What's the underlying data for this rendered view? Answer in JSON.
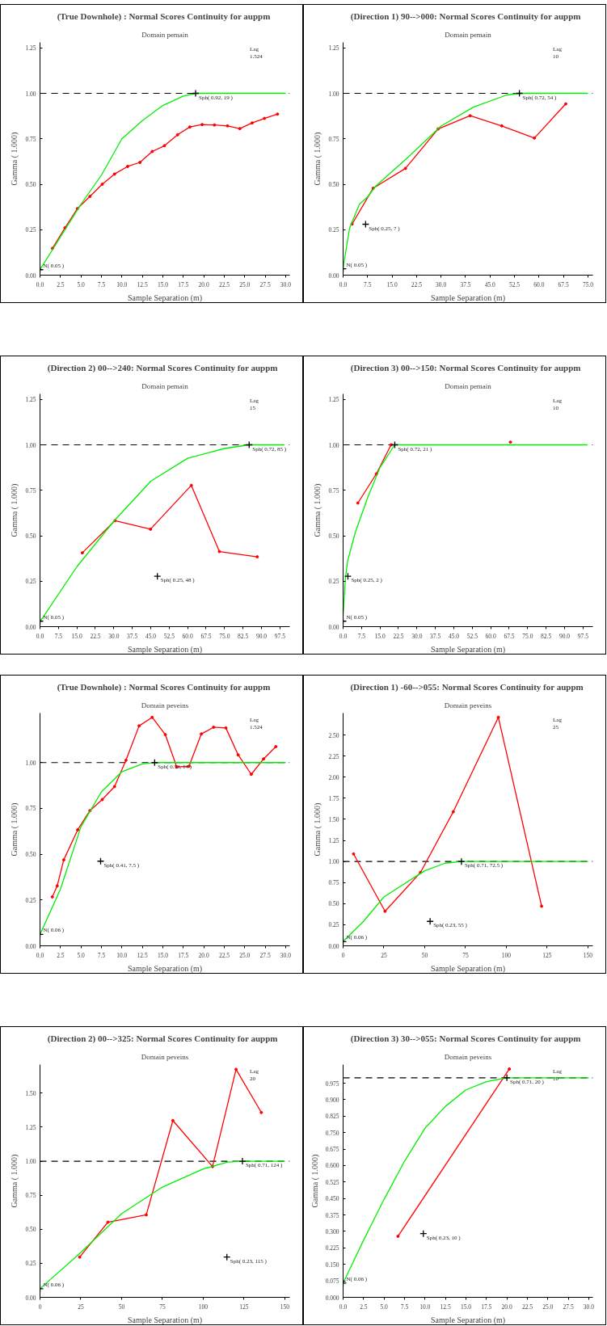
{
  "chart_data": [
    {
      "type": "line",
      "title": "(True Downhole) :  Normal Scores Continuity for auppm",
      "subtitle": "Domain pemain",
      "xlabel": "Sample Separation (m)",
      "ylabel": "Gamma ( 1.000)",
      "xlim": [
        0,
        30.5
      ],
      "ylim": [
        0,
        1.28
      ],
      "xticks": [
        {
          "value": 0,
          "label": "0.0"
        },
        {
          "value": 2.5,
          "label": "2.5"
        },
        {
          "value": 5,
          "label": "5.0"
        },
        {
          "value": 7.5,
          "label": "7.5"
        },
        {
          "value": 10,
          "label": "10.0"
        },
        {
          "value": 12.5,
          "label": "12.5"
        },
        {
          "value": 15,
          "label": "15.0"
        },
        {
          "value": 17.5,
          "label": "17.5"
        },
        {
          "value": 20,
          "label": "20.0"
        },
        {
          "value": 22.5,
          "label": "22.5"
        },
        {
          "value": 25,
          "label": "25.0"
        },
        {
          "value": 27.5,
          "label": "27.5"
        },
        {
          "value": 30,
          "label": "30.0"
        }
      ],
      "yticks": [
        {
          "value": 0,
          "label": "0.00"
        },
        {
          "value": 0.25,
          "label": "0.25"
        },
        {
          "value": 0.5,
          "label": "0.50"
        },
        {
          "value": 0.75,
          "label": "0.75"
        },
        {
          "value": 1,
          "label": "1.00"
        },
        {
          "value": 1.25,
          "label": "1.25"
        }
      ],
      "series": [
        {
          "color": "#ff0000",
          "marker": "circle",
          "x": [
            1.52,
            3.05,
            4.57,
            6.1,
            7.6,
            9.1,
            10.7,
            12.2,
            13.7,
            15.2,
            16.8,
            18.3,
            19.8,
            21.3,
            22.9,
            24.4,
            25.9,
            27.4,
            29.0
          ],
          "values": [
            0.147,
            0.26,
            0.366,
            0.433,
            0.5,
            0.556,
            0.598,
            0.62,
            0.68,
            0.712,
            0.772,
            0.815,
            0.828,
            0.826,
            0.821,
            0.806,
            0.837,
            0.862,
            0.886
          ]
        },
        {
          "color": "#00ee00",
          "marker": "none",
          "x": [
            0,
            2.5,
            5,
            7.5,
            10,
            12.5,
            15,
            17.5,
            19,
            30
          ],
          "values": [
            0.03,
            0.21,
            0.39,
            0.55,
            0.75,
            0.85,
            0.933,
            0.985,
            1.0,
            1.0
          ]
        },
        {
          "type": "scatter",
          "color": "#000000",
          "marker": "cross",
          "x": [
            0,
            19
          ],
          "values": [
            0.03,
            1.0
          ]
        }
      ],
      "ref_lines": [
        {
          "axis": "y",
          "value": 1.0,
          "color": "#000000",
          "line_style": "dashed"
        }
      ],
      "annotations": [
        {
          "text": "N( 0.05 )",
          "x": 0,
          "y": 0.03
        },
        {
          "text": "Sph( 0.92, 19 )",
          "x": 19,
          "y": 1.0
        },
        "Lag\n1.524"
      ]
    },
    {
      "type": "line",
      "title": "(Direction 1)  90-->000:  Normal Scores Continuity for auppm",
      "subtitle": "Domain pemain",
      "xlabel": "Sample Separation (m)",
      "ylabel": "Gamma ( 1.000)",
      "xlim": [
        0,
        76.5
      ],
      "ylim": [
        0,
        1.28
      ],
      "xticks": [
        {
          "value": 0,
          "label": "0.0"
        },
        {
          "value": 7.5,
          "label": "7.5"
        },
        {
          "value": 15,
          "label": "15.0"
        },
        {
          "value": 22.5,
          "label": "22.5"
        },
        {
          "value": 30,
          "label": "30.0"
        },
        {
          "value": 37.5,
          "label": "37.5"
        },
        {
          "value": 45,
          "label": "45.0"
        },
        {
          "value": 52.5,
          "label": "52.5"
        },
        {
          "value": 60,
          "label": "60.0"
        },
        {
          "value": 67.5,
          "label": "67.5"
        },
        {
          "value": 75,
          "label": "75.0"
        }
      ],
      "yticks": [
        {
          "value": 0,
          "label": "0.00"
        },
        {
          "value": 0.25,
          "label": "0.25"
        },
        {
          "value": 0.5,
          "label": "0.50"
        },
        {
          "value": 0.75,
          "label": "0.75"
        },
        {
          "value": 1,
          "label": "1.00"
        },
        {
          "value": 1.25,
          "label": "1.25"
        }
      ],
      "series": [
        {
          "color": "#ff0000",
          "marker": "circle",
          "x": [
            2.75,
            9.2,
            19.1,
            29.1,
            38.9,
            48.6,
            58.6,
            68.2
          ],
          "values": [
            0.281,
            0.478,
            0.587,
            0.804,
            0.877,
            0.821,
            0.754,
            0.942
          ]
        },
        {
          "color": "#00ee00",
          "marker": "none",
          "x": [
            0,
            2,
            5,
            7.5,
            10,
            20,
            30,
            40,
            50,
            54,
            75
          ],
          "values": [
            0.04,
            0.26,
            0.39,
            0.43,
            0.49,
            0.65,
            0.82,
            0.925,
            0.99,
            1.0,
            1.0
          ]
        },
        {
          "type": "scatter",
          "color": "#000000",
          "marker": "cross",
          "x": [
            0,
            6.9,
            54
          ],
          "values": [
            0.035,
            0.28,
            1.0
          ]
        }
      ],
      "ref_lines": [
        {
          "axis": "y",
          "value": 1.0,
          "color": "#000000",
          "line_style": "dashed"
        }
      ],
      "annotations": [
        {
          "text": "N( 0.05 )",
          "x": 0,
          "y": 0.035
        },
        {
          "text": "Sph( 0.25, 7 )",
          "x": 6.9,
          "y": 0.28
        },
        {
          "text": "Sph( 0.72, 54 )",
          "x": 54,
          "y": 1.0
        },
        "Lag\n10"
      ]
    },
    {
      "type": "line",
      "title": "(Direction 2)  00-->240:  Normal Scores Continuity for auppm",
      "subtitle": "Domain pemain",
      "xlabel": "Sample Separation (m)",
      "ylabel": "Gamma ( 1.000)",
      "xlim": [
        0,
        101.5
      ],
      "ylim": [
        0,
        1.28
      ],
      "xticks": [
        {
          "value": 0,
          "label": "0.0"
        },
        {
          "value": 7.5,
          "label": "7.5"
        },
        {
          "value": 15,
          "label": "15.0"
        },
        {
          "value": 22.5,
          "label": "22.5"
        },
        {
          "value": 30,
          "label": "30.0"
        },
        {
          "value": 37.5,
          "label": "37.5"
        },
        {
          "value": 45,
          "label": "45.0"
        },
        {
          "value": 52.5,
          "label": "52.5"
        },
        {
          "value": 60,
          "label": "60.0"
        },
        {
          "value": 67.5,
          "label": "67.5"
        },
        {
          "value": 75,
          "label": "75.0"
        },
        {
          "value": 82.5,
          "label": "82.5"
        },
        {
          "value": 90,
          "label": "90.0"
        },
        {
          "value": 97.5,
          "label": "97.5"
        }
      ],
      "yticks": [
        {
          "value": 0,
          "label": "0.00"
        },
        {
          "value": 0.25,
          "label": "0.25"
        },
        {
          "value": 0.5,
          "label": "0.50"
        },
        {
          "value": 0.75,
          "label": "0.75"
        },
        {
          "value": 1,
          "label": "1.00"
        },
        {
          "value": 1.25,
          "label": "1.25"
        }
      ],
      "series": [
        {
          "color": "#ff0000",
          "marker": "circle",
          "x": [
            17.2,
            30.5,
            44.9,
            61.5,
            72.9,
            88.3
          ],
          "values": [
            0.406,
            0.583,
            0.536,
            0.777,
            0.413,
            0.384
          ]
        },
        {
          "color": "#00ee00",
          "marker": "none",
          "x": [
            0,
            15,
            30,
            45,
            60,
            75,
            85,
            99
          ],
          "values": [
            0.027,
            0.33,
            0.58,
            0.8,
            0.926,
            0.98,
            1.0,
            1.0
          ]
        },
        {
          "type": "scatter",
          "color": "#000000",
          "marker": "cross",
          "x": [
            0,
            47.7,
            85
          ],
          "values": [
            0.03,
            0.277,
            1.0
          ]
        }
      ],
      "ref_lines": [
        {
          "axis": "y",
          "value": 1.0,
          "color": "#000000",
          "line_style": "dashed"
        }
      ],
      "annotations": [
        {
          "text": "N( 0.05 )",
          "x": 0,
          "y": 0.03
        },
        {
          "text": "Sph( 0.25, 48 )",
          "x": 47.7,
          "y": 0.277
        },
        {
          "text": "Sph( 0.72, 85 )",
          "x": 85,
          "y": 1.0
        },
        "Lag\n15"
      ]
    },
    {
      "type": "line",
      "title": "(Direction 3)  00-->150:  Normal Scores Continuity for auppm",
      "subtitle": "Domain pemain",
      "xlabel": "Sample Separation (m)",
      "ylabel": "Gamma ( 1.000)",
      "xlim": [
        0,
        101.5
      ],
      "ylim": [
        0,
        1.28
      ],
      "xticks": [
        {
          "value": 0,
          "label": "0.0"
        },
        {
          "value": 7.5,
          "label": "7.5"
        },
        {
          "value": 15,
          "label": "15.0"
        },
        {
          "value": 22.5,
          "label": "22.5"
        },
        {
          "value": 30,
          "label": "30.0"
        },
        {
          "value": 37.5,
          "label": "37.5"
        },
        {
          "value": 45,
          "label": "45.0"
        },
        {
          "value": 52.5,
          "label": "52.5"
        },
        {
          "value": 60,
          "label": "60.0"
        },
        {
          "value": 67.5,
          "label": "67.5"
        },
        {
          "value": 75,
          "label": "75.0"
        },
        {
          "value": 82.5,
          "label": "82.5"
        },
        {
          "value": 90,
          "label": "90.0"
        },
        {
          "value": 97.5,
          "label": "97.5"
        }
      ],
      "yticks": [
        {
          "value": 0,
          "label": "0.00"
        },
        {
          "value": 0.25,
          "label": "0.25"
        },
        {
          "value": 0.5,
          "label": "0.50"
        },
        {
          "value": 0.75,
          "label": "0.75"
        },
        {
          "value": 1,
          "label": "1.00"
        },
        {
          "value": 1.25,
          "label": "1.25"
        }
      ],
      "series": [
        {
          "color": "#ff0000",
          "marker": "circle",
          "x": [
            6.0,
            13.5,
            19.5,
            44,
            68
          ],
          "values": [
            0.68,
            0.84,
            1.0,
            null,
            1.015
          ]
        },
        {
          "color": "#00ee00",
          "marker": "none",
          "x": [
            0,
            0.9,
            1.8,
            5,
            10,
            15,
            20,
            21,
            99.3
          ],
          "values": [
            0.056,
            0.26,
            0.36,
            0.52,
            0.71,
            0.875,
            0.98,
            1.0,
            1.0
          ]
        },
        {
          "type": "scatter",
          "color": "#000000",
          "marker": "cross",
          "x": [
            0,
            1.95,
            21
          ],
          "values": [
            0.03,
            0.277,
            1.0
          ]
        }
      ],
      "ref_lines": [
        {
          "axis": "y",
          "value": 1.0,
          "color": "#000000",
          "line_style": "dashed"
        }
      ],
      "annotations": [
        {
          "text": "N( 0.05 )",
          "x": 0,
          "y": 0.03
        },
        {
          "text": "Sph( 0.25, 2 )",
          "x": 1.95,
          "y": 0.277
        },
        {
          "text": "Sph( 0.72, 21 )",
          "x": 21,
          "y": 1.0
        },
        "Lag\n10"
      ]
    },
    {
      "type": "line",
      "title": "(True Downhole) :  Normal Scores Continuity for auppm",
      "subtitle": "Domain peveins",
      "xlabel": "Sample Separation (m)",
      "ylabel": "Gamma ( 1.000)",
      "xlim": [
        0,
        30.5
      ],
      "ylim": [
        0,
        1.27
      ],
      "xticks": [
        {
          "value": 0,
          "label": "0.0"
        },
        {
          "value": 2.5,
          "label": "2.5"
        },
        {
          "value": 5,
          "label": "5.0"
        },
        {
          "value": 7.5,
          "label": "7.5"
        },
        {
          "value": 10,
          "label": "10.0"
        },
        {
          "value": 12.5,
          "label": "12.5"
        },
        {
          "value": 15,
          "label": "15.0"
        },
        {
          "value": 17.5,
          "label": "17.5"
        },
        {
          "value": 20,
          "label": "20.0"
        },
        {
          "value": 22.5,
          "label": "22.5"
        },
        {
          "value": 25,
          "label": "25.0"
        },
        {
          "value": 27.5,
          "label": "27.5"
        },
        {
          "value": 30,
          "label": "30.0"
        }
      ],
      "yticks": [
        {
          "value": 0,
          "label": "0.00"
        },
        {
          "value": 0.25,
          "label": "0.25"
        },
        {
          "value": 0.5,
          "label": "0.50"
        },
        {
          "value": 0.75,
          "label": "0.75"
        },
        {
          "value": 1,
          "label": "1.00"
        }
      ],
      "series": [
        {
          "color": "#ff0000",
          "marker": "circle",
          "x": [
            1.5,
            2.1,
            2.9,
            4.6,
            6.1,
            7.6,
            9.1,
            10.5,
            12.1,
            13.7,
            15.3,
            16.7,
            18.2,
            19.7,
            21.2,
            22.7,
            24.2,
            25.8,
            27.3,
            28.8
          ],
          "values": [
            0.267,
            0.327,
            0.469,
            0.633,
            0.738,
            0.798,
            0.869,
            1.013,
            1.2,
            1.247,
            1.153,
            0.976,
            0.98,
            1.156,
            1.193,
            1.189,
            1.042,
            0.936,
            1.02,
            1.087
          ]
        },
        {
          "color": "#00ee00",
          "marker": "none",
          "x": [
            0,
            2.5,
            5,
            7.5,
            10,
            12.5,
            14,
            30
          ],
          "values": [
            0.062,
            0.31,
            0.65,
            0.84,
            0.95,
            0.993,
            1.0,
            1.0
          ]
        },
        {
          "type": "scatter",
          "color": "#000000",
          "marker": "cross",
          "x": [
            0,
            7.4,
            14
          ],
          "values": [
            0.062,
            0.462,
            1.0
          ]
        }
      ],
      "ref_lines": [
        {
          "axis": "y",
          "value": 1.0,
          "color": "#000000",
          "line_style": "dashed"
        }
      ],
      "annotations": [
        {
          "text": "N( 0.06 )",
          "x": 0,
          "y": 0.062
        },
        {
          "text": "Sph( 0.41, 7.5 )",
          "x": 7.4,
          "y": 0.462
        },
        {
          "text": "Sph( 0.53, 14 )",
          "x": 14,
          "y": 1.0
        },
        "Lag\n1.524"
      ]
    },
    {
      "type": "line",
      "title": "(Direction 1) -60-->055:  Normal Scores Continuity for auppm",
      "subtitle": "Domain peveins",
      "xlabel": "Sample Separation (m)",
      "ylabel": "Gamma ( 1.000)",
      "xlim": [
        0,
        153
      ],
      "ylim": [
        0,
        2.76
      ],
      "xticks": [
        0,
        25,
        50,
        75,
        100,
        125,
        150
      ],
      "yticks": [
        {
          "value": 0,
          "label": "0.00"
        },
        {
          "value": 0.25,
          "label": "0.25"
        },
        {
          "value": 0.5,
          "label": "0.50"
        },
        {
          "value": 0.75,
          "label": "0.75"
        },
        {
          "value": 1,
          "label": "1.00"
        },
        {
          "value": 1.25,
          "label": "1.25"
        },
        {
          "value": 1.5,
          "label": "1.50"
        },
        {
          "value": 1.75,
          "label": "1.75"
        },
        {
          "value": 2,
          "label": "2.00"
        },
        {
          "value": 2.25,
          "label": "2.25"
        },
        {
          "value": 2.5,
          "label": "2.50"
        }
      ],
      "series": [
        {
          "color": "#ff0000",
          "marker": "circle",
          "x": [
            6.4,
            25.7,
            47.4,
            67.5,
            95.1,
            121.6
          ],
          "values": [
            1.09,
            0.41,
            0.87,
            1.59,
            2.71,
            0.47
          ]
        },
        {
          "color": "#00ee00",
          "marker": "none",
          "x": [
            0,
            12.5,
            25,
            50,
            62.5,
            72.5,
            150
          ],
          "values": [
            0.05,
            0.29,
            0.58,
            0.89,
            0.98,
            1.0,
            1.0
          ]
        },
        {
          "type": "scatter",
          "color": "#000000",
          "marker": "cross",
          "x": [
            0,
            53.3,
            72.5
          ],
          "values": [
            0.05,
            0.29,
            1.0
          ]
        }
      ],
      "ref_lines": [
        {
          "axis": "y",
          "value": 1.0,
          "color": "#000000",
          "line_style": "dashed"
        }
      ],
      "annotations": [
        {
          "text": "N( 0.06 )",
          "x": 0,
          "y": 0.05
        },
        {
          "text": "Sph( 0.23, 55 )",
          "x": 53.3,
          "y": 0.29
        },
        {
          "text": "Sph( 0.71, 72.5 )",
          "x": 72.5,
          "y": 1.0
        },
        "Lag\n25"
      ]
    },
    {
      "type": "line",
      "title": "(Direction 2)  00-->325:  Normal Scores Continuity for auppm",
      "subtitle": "Domain peveins",
      "xlabel": "Sample Separation (m)",
      "ylabel": "Gamma ( 1.000)",
      "xlim": [
        0,
        153
      ],
      "ylim": [
        0,
        1.71
      ],
      "xticks": [
        0,
        25,
        50,
        75,
        100,
        125,
        150
      ],
      "yticks": [
        {
          "value": 0,
          "label": "0.00"
        },
        {
          "value": 0.25,
          "label": "0.25"
        },
        {
          "value": 0.5,
          "label": "0.50"
        },
        {
          "value": 0.75,
          "label": "0.75"
        },
        {
          "value": 1,
          "label": "1.00"
        },
        {
          "value": 1.25,
          "label": "1.25"
        },
        {
          "value": 1.5,
          "label": "1.50"
        }
      ],
      "series": [
        {
          "color": "#ff0000",
          "marker": "circle",
          "x": [
            24.3,
            41.6,
            65.1,
            81.4,
            105.7,
            120.1,
            135.6
          ],
          "values": [
            0.296,
            0.552,
            0.606,
            1.299,
            0.961,
            1.675,
            1.358
          ]
        },
        {
          "color": "#00ee00",
          "marker": "none",
          "x": [
            0,
            25,
            50,
            75,
            100,
            115,
            124,
            150
          ],
          "values": [
            0.063,
            0.33,
            0.615,
            0.81,
            0.943,
            0.994,
            1.0,
            1.0
          ]
        },
        {
          "type": "scatter",
          "color": "#000000",
          "marker": "cross",
          "x": [
            0,
            114.5,
            124
          ],
          "values": [
            0.063,
            0.296,
            1.0
          ]
        }
      ],
      "ref_lines": [
        {
          "axis": "y",
          "value": 1.0,
          "color": "#000000",
          "line_style": "dashed"
        }
      ],
      "annotations": [
        {
          "text": "N( 0.06 )",
          "x": 0,
          "y": 0.063
        },
        {
          "text": "Sph( 0.23, 115 )",
          "x": 114.5,
          "y": 0.296
        },
        {
          "text": "Sph( 0.71, 124 )",
          "x": 124,
          "y": 1.0
        },
        "Lag\n20"
      ]
    },
    {
      "type": "line",
      "title": "(Direction 3)  30-->055:  Normal Scores Continuity for auppm",
      "subtitle": "Domain peveins",
      "xlabel": "Sample Separation (m)",
      "ylabel": "Gamma ( 1.000)",
      "xlim": [
        0,
        30.5
      ],
      "ylim": [
        0,
        1.06
      ],
      "xticks": [
        {
          "value": 0,
          "label": "0.0"
        },
        {
          "value": 2.5,
          "label": "2.5"
        },
        {
          "value": 5,
          "label": "5.0"
        },
        {
          "value": 7.5,
          "label": "7.5"
        },
        {
          "value": 10,
          "label": "10.0"
        },
        {
          "value": 12.5,
          "label": "12.5"
        },
        {
          "value": 15,
          "label": "15.0"
        },
        {
          "value": 17.5,
          "label": "17.5"
        },
        {
          "value": 20,
          "label": "20.0"
        },
        {
          "value": 22.5,
          "label": "22.5"
        },
        {
          "value": 25,
          "label": "25.0"
        },
        {
          "value": 27.5,
          "label": "27.5"
        },
        {
          "value": 30,
          "label": "30.0"
        }
      ],
      "yticks": [
        {
          "value": 0,
          "label": "0.000"
        },
        {
          "value": 0.075,
          "label": "0.075"
        },
        {
          "value": 0.15,
          "label": "0.150"
        },
        {
          "value": 0.225,
          "label": "0.225"
        },
        {
          "value": 0.3,
          "label": "0.300"
        },
        {
          "value": 0.375,
          "label": "0.375"
        },
        {
          "value": 0.45,
          "label": "0.450"
        },
        {
          "value": 0.525,
          "label": "0.525"
        },
        {
          "value": 0.6,
          "label": "0.600"
        },
        {
          "value": 0.675,
          "label": "0.675"
        },
        {
          "value": 0.75,
          "label": "0.750"
        },
        {
          "value": 0.825,
          "label": "0.825"
        },
        {
          "value": 0.9,
          "label": "0.900"
        },
        {
          "value": 0.975,
          "label": "0.975"
        }
      ],
      "series": [
        {
          "color": "#ff0000",
          "marker": "circle",
          "x": [
            6.7,
            20.3
          ],
          "values": [
            0.278,
            1.04
          ]
        },
        {
          "color": "#00ee00",
          "marker": "none",
          "x": [
            0,
            2.5,
            5,
            7.5,
            10,
            12.5,
            15,
            17.5,
            20,
            30
          ],
          "values": [
            0.065,
            0.26,
            0.446,
            0.62,
            0.77,
            0.87,
            0.945,
            0.982,
            1.0,
            1.0
          ]
        },
        {
          "type": "scatter",
          "color": "#000000",
          "marker": "cross",
          "x": [
            0,
            9.8,
            20
          ],
          "values": [
            0.065,
            0.29,
            1.0
          ]
        }
      ],
      "ref_lines": [
        {
          "axis": "y",
          "value": 1.0,
          "color": "#000000",
          "line_style": "dashed"
        }
      ],
      "annotations": [
        {
          "text": "N( 0.06 )",
          "x": 0,
          "y": 0.065
        },
        {
          "text": "Sph( 0.23, 10 )",
          "x": 9.8,
          "y": 0.29
        },
        {
          "text": "Sph( 0.71, 20 )",
          "x": 20,
          "y": 1.0
        },
        "Lag\n10"
      ]
    }
  ]
}
